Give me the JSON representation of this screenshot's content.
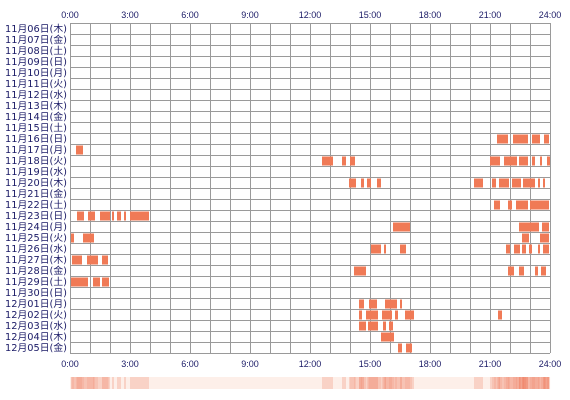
{
  "chart_data": {
    "type": "bar",
    "xlim": [
      "0:00",
      "24:00"
    ],
    "x_ticks": [
      "0:00",
      "3:00",
      "6:00",
      "9:00",
      "12:00",
      "15:00",
      "18:00",
      "21:00",
      "24:00"
    ],
    "grid": true,
    "colors": {
      "bar": "#f07a56",
      "grid": "#9a9a9a",
      "text": "#1a1a66",
      "strip_low": "#fdefe9",
      "strip_high": "#f08a70"
    },
    "rows": [
      {
        "label": "11月06日(木)",
        "segments": []
      },
      {
        "label": "11月07日(金)",
        "segments": []
      },
      {
        "label": "11月08日(土)",
        "segments": []
      },
      {
        "label": "11月09日(日)",
        "segments": []
      },
      {
        "label": "11月10日(月)",
        "segments": []
      },
      {
        "label": "11月11日(火)",
        "segments": []
      },
      {
        "label": "11月12日(水)",
        "segments": []
      },
      {
        "label": "11月13日(木)",
        "segments": []
      },
      {
        "label": "11月14日(金)",
        "segments": []
      },
      {
        "label": "11月15日(土)",
        "segments": []
      },
      {
        "label": "11月16日(日)",
        "segments": [
          [
            "21:21",
            "21:54"
          ],
          [
            "22:09",
            "22:54"
          ],
          [
            "23:06",
            "23:30"
          ],
          [
            "23:42",
            "23:57"
          ]
        ]
      },
      {
        "label": "11月17日(月)",
        "segments": [
          [
            "0:18",
            "0:39"
          ]
        ]
      },
      {
        "label": "11月18日(火)",
        "segments": [
          [
            "12:36",
            "13:09"
          ],
          [
            "13:36",
            "13:48"
          ],
          [
            "14:00",
            "14:15"
          ],
          [
            "21:00",
            "21:30"
          ],
          [
            "21:42",
            "22:21"
          ],
          [
            "22:27",
            "22:54"
          ],
          [
            "23:06",
            "23:15"
          ],
          [
            "23:30",
            "23:36"
          ],
          [
            "23:51",
            "24:00"
          ]
        ]
      },
      {
        "label": "11月19日(水)",
        "segments": []
      },
      {
        "label": "11月20日(木)",
        "segments": [
          [
            "13:57",
            "14:18"
          ],
          [
            "14:33",
            "14:42"
          ],
          [
            "14:51",
            "15:03"
          ],
          [
            "15:21",
            "15:33"
          ],
          [
            "20:12",
            "20:39"
          ],
          [
            "21:06",
            "21:18"
          ],
          [
            "21:27",
            "21:57"
          ],
          [
            "22:06",
            "22:33"
          ],
          [
            "22:39",
            "23:15"
          ],
          [
            "23:24",
            "23:30"
          ],
          [
            "23:39",
            "23:45"
          ]
        ]
      },
      {
        "label": "11月21日(金)",
        "segments": []
      },
      {
        "label": "11月22日(土)",
        "segments": [
          [
            "21:12",
            "21:30"
          ],
          [
            "21:54",
            "22:06"
          ],
          [
            "22:18",
            "22:54"
          ],
          [
            "23:00",
            "23:57"
          ]
        ]
      },
      {
        "label": "11月23日(日)",
        "segments": [
          [
            "0:21",
            "0:42"
          ],
          [
            "0:54",
            "1:15"
          ],
          [
            "1:30",
            "2:00"
          ],
          [
            "2:06",
            "2:12"
          ],
          [
            "2:21",
            "2:33"
          ],
          [
            "2:42",
            "2:48"
          ],
          [
            "3:00",
            "3:57"
          ]
        ]
      },
      {
        "label": "11月24日(月)",
        "segments": [
          [
            "16:09",
            "17:00"
          ],
          [
            "22:27",
            "23:27"
          ],
          [
            "23:36",
            "23:57"
          ]
        ]
      },
      {
        "label": "11月25日(火)",
        "segments": [
          [
            "0:03",
            "0:12"
          ],
          [
            "0:39",
            "1:12"
          ],
          [
            "22:36",
            "22:57"
          ],
          [
            "23:30",
            "23:57"
          ]
        ]
      },
      {
        "label": "11月26日(水)",
        "segments": [
          [
            "15:03",
            "15:33"
          ],
          [
            "15:42",
            "15:48"
          ],
          [
            "16:30",
            "16:48"
          ],
          [
            "21:48",
            "22:00"
          ],
          [
            "22:12",
            "22:30"
          ],
          [
            "22:36",
            "22:48"
          ],
          [
            "22:57",
            "23:06"
          ],
          [
            "23:24",
            "23:30"
          ],
          [
            "23:39",
            "23:57"
          ]
        ]
      },
      {
        "label": "11月27日(木)",
        "segments": [
          [
            "0:06",
            "0:36"
          ],
          [
            "0:51",
            "1:24"
          ],
          [
            "1:36",
            "1:54"
          ]
        ]
      },
      {
        "label": "11月28日(金)",
        "segments": [
          [
            "14:12",
            "14:48"
          ],
          [
            "21:54",
            "22:12"
          ],
          [
            "22:27",
            "22:42"
          ],
          [
            "23:15",
            "23:24"
          ],
          [
            "23:33",
            "23:48"
          ]
        ]
      },
      {
        "label": "11月29日(土)",
        "segments": [
          [
            "0:03",
            "0:54"
          ],
          [
            "1:09",
            "1:30"
          ],
          [
            "1:36",
            "1:57"
          ]
        ]
      },
      {
        "label": "11月30日(日)",
        "segments": []
      },
      {
        "label": "12月01日(月)",
        "segments": [
          [
            "14:27",
            "14:42"
          ],
          [
            "14:57",
            "15:21"
          ],
          [
            "15:45",
            "16:21"
          ],
          [
            "16:30",
            "16:36"
          ]
        ]
      },
      {
        "label": "12月02日(火)",
        "segments": [
          [
            "14:27",
            "14:36"
          ],
          [
            "14:48",
            "15:24"
          ],
          [
            "15:36",
            "16:06"
          ],
          [
            "16:15",
            "16:24"
          ],
          [
            "16:45",
            "17:12"
          ],
          [
            "21:24",
            "21:36"
          ]
        ]
      },
      {
        "label": "12月03日(水)",
        "segments": [
          [
            "14:27",
            "14:48"
          ],
          [
            "14:54",
            "15:24"
          ],
          [
            "15:39",
            "15:48"
          ],
          [
            "15:57",
            "16:09"
          ]
        ]
      },
      {
        "label": "12月04日(木)",
        "segments": [
          [
            "15:33",
            "16:12"
          ]
        ]
      },
      {
        "label": "12月05日(金)",
        "segments": [
          [
            "16:24",
            "16:36"
          ],
          [
            "16:48",
            "17:06"
          ]
        ]
      }
    ]
  }
}
